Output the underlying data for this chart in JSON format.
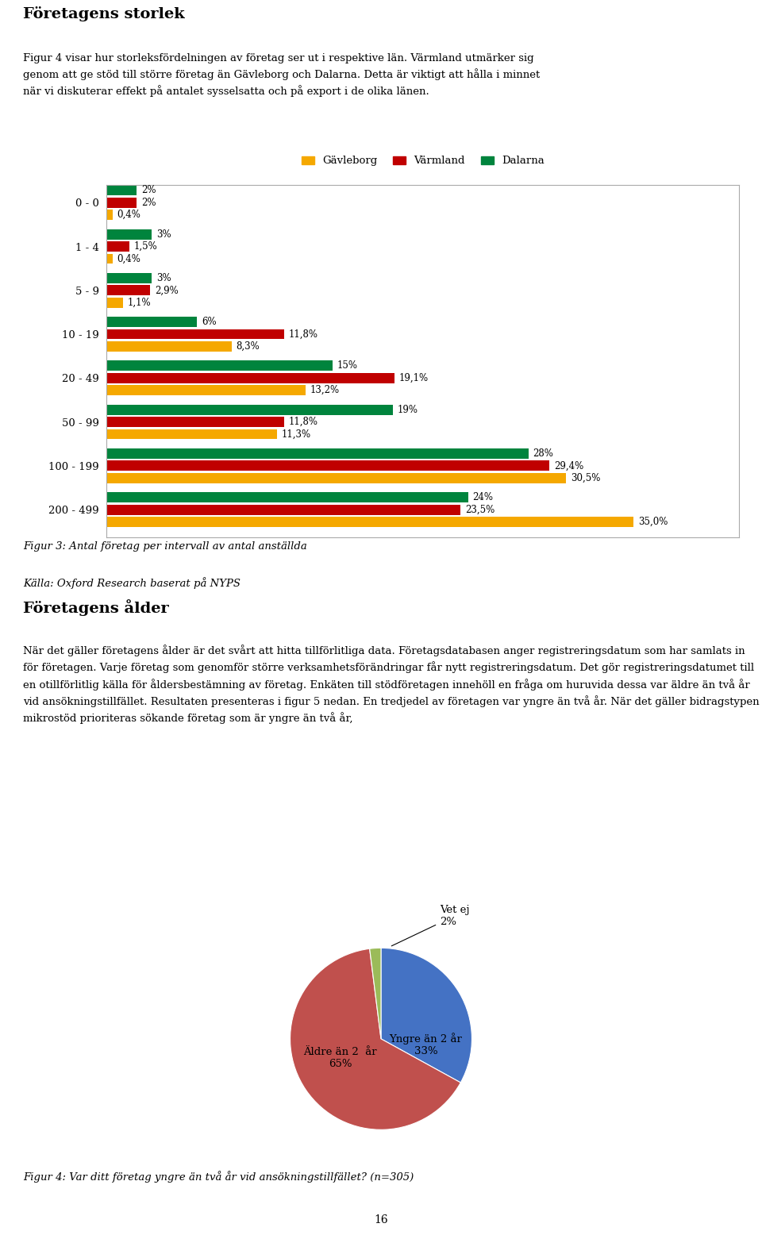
{
  "title_top": "Företagens storlek",
  "body_text_top": "Figur 4 visar hur storleksfördelningen av företag ser ut i respektive län. Värmland utmärker sig\ngenom att ge stöd till större företag än Gävleborg och Dalarna. Detta är viktigt att hålla i minnet\nnär vi diskuterar effekt på antalet sysselsatta och på export i de olika länen.",
  "bar_categories": [
    "200 - 499",
    "100 - 199",
    "50 - 99",
    "20 - 49",
    "10 - 19",
    "5 - 9",
    "1 - 4",
    "0 - 0"
  ],
  "gavleborg": [
    0.4,
    0.4,
    1.1,
    8.3,
    13.2,
    11.3,
    30.5,
    35.0
  ],
  "varmland": [
    2.0,
    1.5,
    2.9,
    11.8,
    19.1,
    11.8,
    29.4,
    23.5
  ],
  "dalarna": [
    2.0,
    3.0,
    3.0,
    6.0,
    15.0,
    19.0,
    28.0,
    24.0
  ],
  "gavleborg_labels": [
    "0,4%",
    "0,4%",
    "1,1%",
    "8,3%",
    "13,2%",
    "11,3%",
    "30,5%",
    "35,0%"
  ],
  "varmland_labels": [
    "2%",
    "1,5%",
    "2,9%",
    "11,8%",
    "19,1%",
    "11,8%",
    "29,4%",
    "23,5%"
  ],
  "dalarna_labels": [
    "2%",
    "3%",
    "3%",
    "6%",
    "15%",
    "19%",
    "28%",
    "24%"
  ],
  "color_gavleborg": "#F5A800",
  "color_varmland": "#C00000",
  "color_dalarna": "#00843D",
  "fig3_caption": "Figur 3: Antal företag per intervall av antal anställda",
  "fig3_source": "Källa: Oxford Research baserat på NYPS",
  "title_bottom": "Företagens ålder",
  "body_text_bottom": "När det gäller företagens ålder är det svårt att hitta tillförlitliga data. Företagsdatabasen anger registreringsdatum som har samlats in för företagen. Varje företag som genomför större verksamhetsförändringar får nytt registreringsdatum. Det gör registreringsdatumet till en otillförlitlig källa för åldersbestämning av företag. Enkäten till stödföretagen innehöll en fråga om huruvida dessa var äldre än två år vid ansökningstillfället. Resultaten presenteras i figur 5 nedan. En tredjedel av företagen var yngre än två år. När det gäller bidragstypen mikrostöd prioriteras sökande företag som är yngre än två år,",
  "pie_values": [
    33,
    65,
    2
  ],
  "pie_colors": [
    "#4472C4",
    "#C0504D",
    "#9BBB59"
  ],
  "fig4_caption": "Figur 4: Var ditt företag yngre än två år vid ansökningstillfället? (n=305)",
  "page_number": "16",
  "chart_border_color": "#AAAAAA",
  "legend_labels": [
    "Gävleborg",
    "Värmland",
    "Dalarna"
  ]
}
